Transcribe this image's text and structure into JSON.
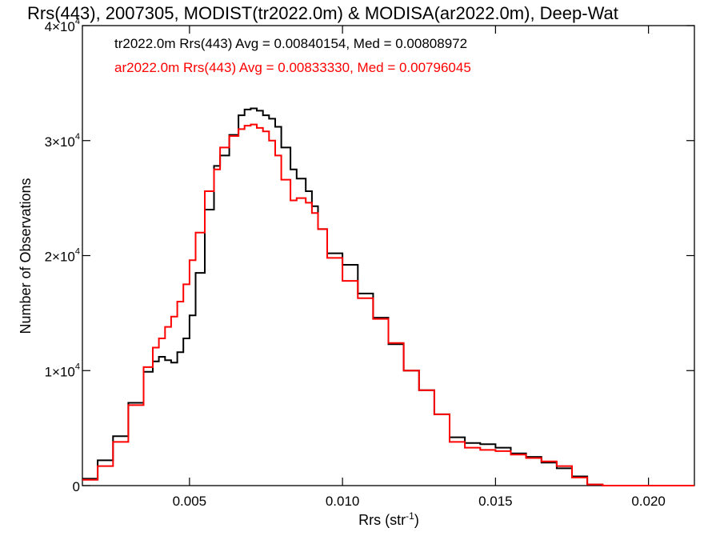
{
  "chart_data": {
    "type": "line",
    "title": "Rrs(443), 2007305, MODIST(tr2022.0m) & MODISA(ar2022.0m), Deep-Wat",
    "xlabel": "Rrs (str⁻¹)",
    "ylabel": "Number of Observations",
    "xlim": [
      0.0015,
      0.0215
    ],
    "ylim": [
      0,
      40000
    ],
    "x_ticks": [
      0.005,
      0.01,
      0.015,
      0.02
    ],
    "x_tick_labels": [
      "0.005",
      "0.010",
      "0.015",
      "0.020"
    ],
    "y_ticks": [
      0,
      10000,
      20000,
      30000,
      40000
    ],
    "y_tick_labels": [
      {
        "base": "0",
        "exp": ""
      },
      {
        "base": "1×10",
        "exp": "4"
      },
      {
        "base": "2×10",
        "exp": "4"
      },
      {
        "base": "3×10",
        "exp": "4"
      },
      {
        "base": "4×10",
        "exp": "4"
      }
    ],
    "annotations": [
      {
        "text": "tr2022.0m Rrs(443) Avg = 0.00840154, Med = 0.00808972",
        "color": "#000000"
      },
      {
        "text": "ar2022.0m Rrs(443) Avg = 0.00833330, Med = 0.00796045",
        "color": "#ff0000"
      }
    ],
    "series": [
      {
        "color": "#000000",
        "x": [
          0.0015,
          0.002,
          0.0025,
          0.003,
          0.0035,
          0.0038,
          0.004,
          0.0042,
          0.0044,
          0.0046,
          0.0048,
          0.005,
          0.0052,
          0.0055,
          0.0058,
          0.006,
          0.0063,
          0.0066,
          0.0068,
          0.007,
          0.0072,
          0.0074,
          0.0076,
          0.0078,
          0.008,
          0.0083,
          0.0085,
          0.0088,
          0.009,
          0.0092,
          0.0095,
          0.01,
          0.0105,
          0.011,
          0.0115,
          0.012,
          0.0125,
          0.013,
          0.0135,
          0.014,
          0.0145,
          0.015,
          0.0155,
          0.016,
          0.0165,
          0.017,
          0.0175,
          0.018,
          0.0185,
          0.019,
          0.02,
          0.0215
        ],
        "y": [
          600,
          2200,
          4300,
          7200,
          9900,
          10800,
          11200,
          10900,
          10700,
          11600,
          12800,
          14800,
          18500,
          24000,
          27800,
          28700,
          30500,
          32200,
          32700,
          32800,
          32600,
          32200,
          31900,
          31200,
          29400,
          27500,
          26700,
          25600,
          24300,
          22300,
          20200,
          19200,
          16700,
          14600,
          12300,
          10000,
          8300,
          6200,
          4200,
          3700,
          3600,
          3300,
          2800,
          2500,
          2000,
          1500,
          800,
          100,
          0,
          0,
          0,
          0
        ]
      },
      {
        "color": "#ff0000",
        "x": [
          0.0015,
          0.002,
          0.0025,
          0.003,
          0.0035,
          0.0038,
          0.004,
          0.0042,
          0.0044,
          0.0046,
          0.0048,
          0.005,
          0.0052,
          0.0055,
          0.0058,
          0.006,
          0.0063,
          0.0066,
          0.0068,
          0.007,
          0.0072,
          0.0074,
          0.0076,
          0.0078,
          0.008,
          0.0083,
          0.0085,
          0.0088,
          0.009,
          0.0092,
          0.0095,
          0.01,
          0.0105,
          0.011,
          0.0115,
          0.012,
          0.0125,
          0.013,
          0.0135,
          0.014,
          0.0145,
          0.015,
          0.0155,
          0.016,
          0.0165,
          0.017,
          0.0175,
          0.018,
          0.0185,
          0.019,
          0.02,
          0.0215
        ],
        "y": [
          500,
          1700,
          3800,
          7000,
          10300,
          12000,
          12800,
          13800,
          14700,
          16000,
          17500,
          19600,
          22000,
          25600,
          27500,
          29400,
          30400,
          31000,
          31300,
          31400,
          31100,
          30800,
          30000,
          28700,
          26600,
          24800,
          25000,
          24600,
          23700,
          22300,
          19800,
          17800,
          16300,
          14500,
          12400,
          10000,
          8300,
          6200,
          3800,
          3300,
          3100,
          3000,
          2700,
          2400,
          2100,
          1700,
          700,
          100,
          0,
          0,
          0,
          0
        ]
      }
    ]
  }
}
